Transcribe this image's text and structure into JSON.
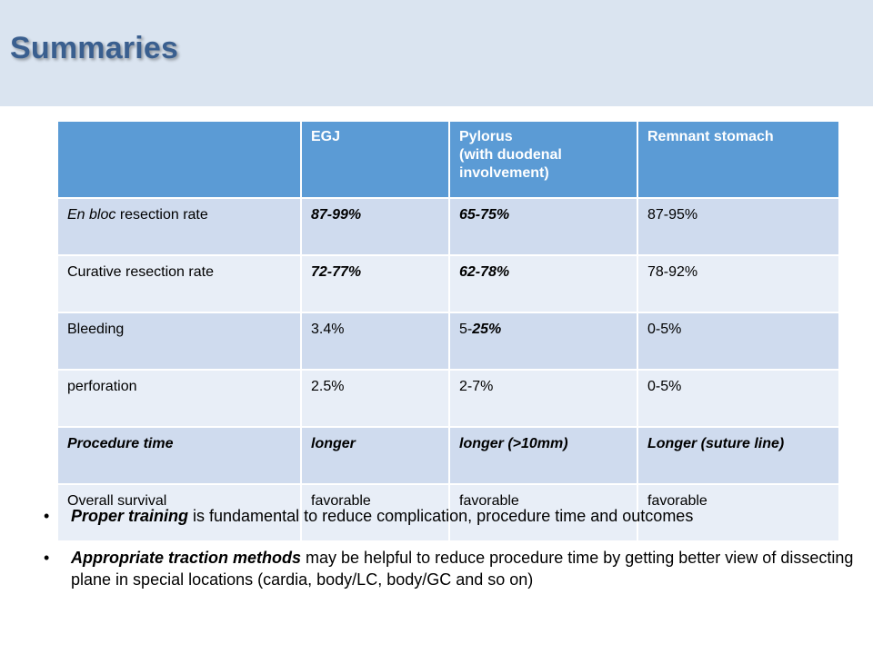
{
  "header": {
    "title": "Summaries"
  },
  "table": {
    "columns": [
      "",
      "EGJ",
      "Pylorus\n(with duodenal involvement)",
      "Remnant stomach"
    ],
    "rows": [
      {
        "label_italic": "En bloc",
        "label_rest": " resection rate",
        "cells": [
          "87-99%",
          "65-75%",
          "87-95%"
        ]
      },
      {
        "label": "Curative resection rate",
        "cells": [
          "72-77%",
          "62-78%",
          "78-92%"
        ]
      },
      {
        "label": "Bleeding",
        "cells": [
          "3.4%",
          "5-",
          "0-5%"
        ],
        "cell2_emph": "25%"
      },
      {
        "label": "perforation",
        "cells": [
          "2.5%",
          "2-7%",
          "0-5%"
        ]
      },
      {
        "label": "Procedure time",
        "cells": [
          "longer",
          "longer (>10mm)",
          "Longer (suture line)"
        ]
      },
      {
        "label": "Overall survival",
        "cells": [
          "favorable",
          "favorable",
          "favorable"
        ]
      }
    ]
  },
  "bullets": [
    {
      "marker": "•",
      "emph": "Proper training",
      "rest": " is fundamental  to reduce complication, procedure time and outcomes"
    },
    {
      "marker": "•",
      "emph": "Appropriate traction methods",
      "rest": " may be helpful  to reduce procedure time by getting better view of dissecting plane in special locations (cardia, body/LC, body/GC and so on)"
    }
  ],
  "colors": {
    "header_band": "#dae4f0",
    "title": "#3a5f8f",
    "table_header": "#5b9bd5",
    "row_dark": "#cfdbee",
    "row_light": "#e8eef7"
  }
}
